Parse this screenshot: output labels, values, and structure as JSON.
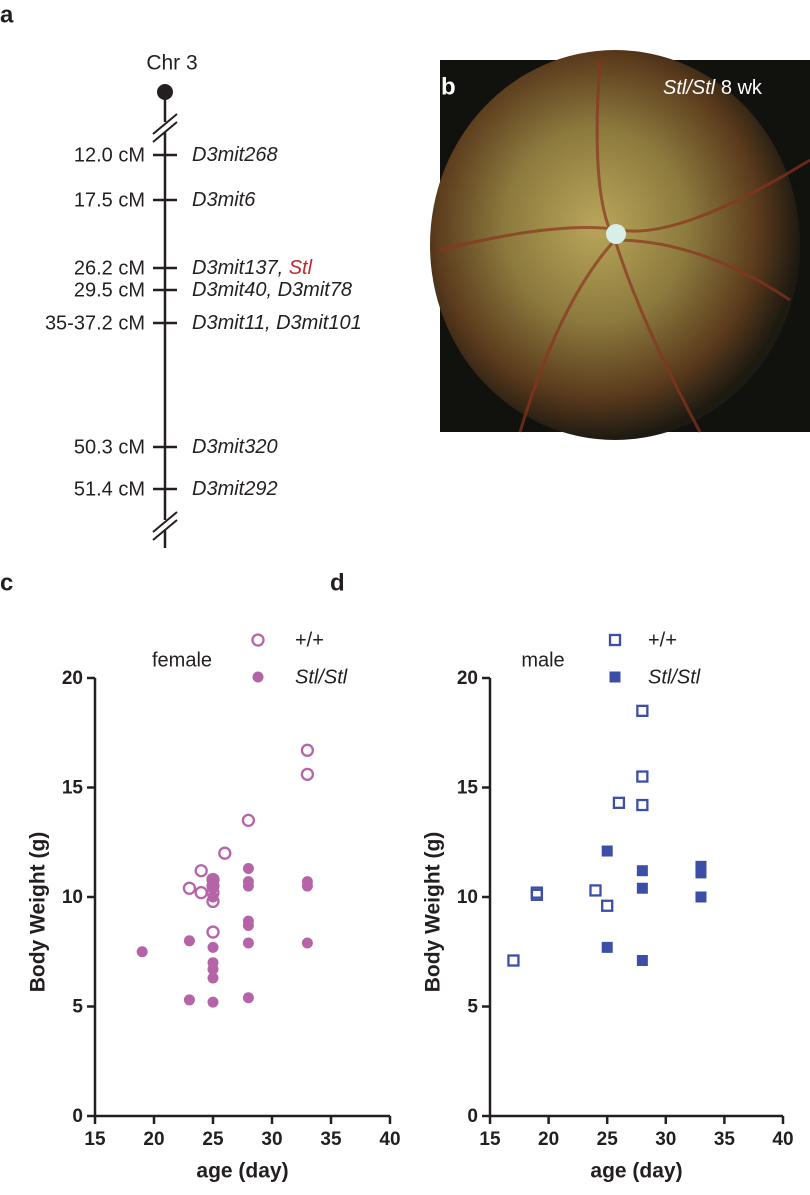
{
  "panels": [
    "a",
    "b",
    "c",
    "d"
  ],
  "map": {
    "chromosome": "Chr 3",
    "markers": [
      {
        "position": "12.0 cM",
        "name": "D3mit268"
      },
      {
        "position": "17.5 cM",
        "name": "D3mit6"
      },
      {
        "position": "26.2 cM",
        "name": "D3mit137,",
        "locus": "Stl"
      },
      {
        "position": "29.5 cM",
        "name": "D3mit40, D3mit78"
      },
      {
        "position": "35-37.2 cM",
        "name": "D3mit11, D3mit101"
      },
      {
        "position": "50.3 cM",
        "name": "D3mit320"
      },
      {
        "position": "51.4 cM",
        "name": "D3mit292"
      }
    ]
  },
  "image": {
    "genotype": "Stl/Stl",
    "age": "8 wk"
  },
  "chart_data": [
    {
      "type": "scatter",
      "annotation": "female",
      "xlabel": "age (day)",
      "ylabel": "Body Weight (g)",
      "xlim": [
        15,
        40
      ],
      "ylim": [
        0,
        20
      ],
      "xticks": [
        15,
        20,
        25,
        30,
        35,
        40
      ],
      "yticks": [
        0,
        5,
        10,
        15,
        20
      ],
      "series": [
        {
          "name": "+/+",
          "color": "#b565a7",
          "marker": "circle",
          "filled": false,
          "x": [
            23,
            24,
            24,
            25,
            25,
            25,
            25,
            25,
            26,
            28,
            33,
            33
          ],
          "values": [
            10.4,
            11.2,
            10.2,
            10.8,
            10.5,
            10.2,
            9.8,
            8.4,
            12.0,
            13.5,
            16.7,
            15.6
          ]
        },
        {
          "name": "Stl/Stl",
          "color": "#b565a7",
          "marker": "circle",
          "filled": true,
          "x": [
            19,
            23,
            23,
            25,
            25,
            25,
            25,
            25,
            25,
            25,
            25,
            28,
            28,
            28,
            28,
            28,
            28,
            28,
            33,
            33,
            33
          ],
          "values": [
            7.5,
            8.0,
            5.3,
            10.8,
            10.4,
            10.0,
            7.7,
            7.0,
            6.7,
            6.3,
            5.2,
            11.3,
            10.7,
            10.5,
            8.9,
            8.7,
            7.9,
            5.4,
            10.7,
            10.5,
            7.9
          ]
        }
      ]
    },
    {
      "type": "scatter",
      "annotation": "male",
      "xlabel": "age (day)",
      "ylabel": "Body Weight (g)",
      "xlim": [
        15,
        40
      ],
      "ylim": [
        0,
        20
      ],
      "xticks": [
        15,
        20,
        25,
        30,
        35,
        40
      ],
      "yticks": [
        0,
        5,
        10,
        15,
        20
      ],
      "series": [
        {
          "name": "+/+",
          "color": "#3c4ea6",
          "marker": "square",
          "filled": false,
          "x": [
            17,
            19,
            19,
            24,
            25,
            26,
            28,
            28,
            28
          ],
          "values": [
            7.1,
            10.2,
            10.1,
            10.3,
            9.6,
            14.3,
            18.5,
            15.5,
            14.2
          ]
        },
        {
          "name": "Stl/Stl",
          "color": "#3c4ea6",
          "marker": "square",
          "filled": true,
          "x": [
            25,
            25,
            28,
            28,
            28,
            33,
            33,
            33
          ],
          "values": [
            12.1,
            7.7,
            11.2,
            10.4,
            7.1,
            11.4,
            11.1,
            10.0
          ]
        }
      ]
    }
  ]
}
